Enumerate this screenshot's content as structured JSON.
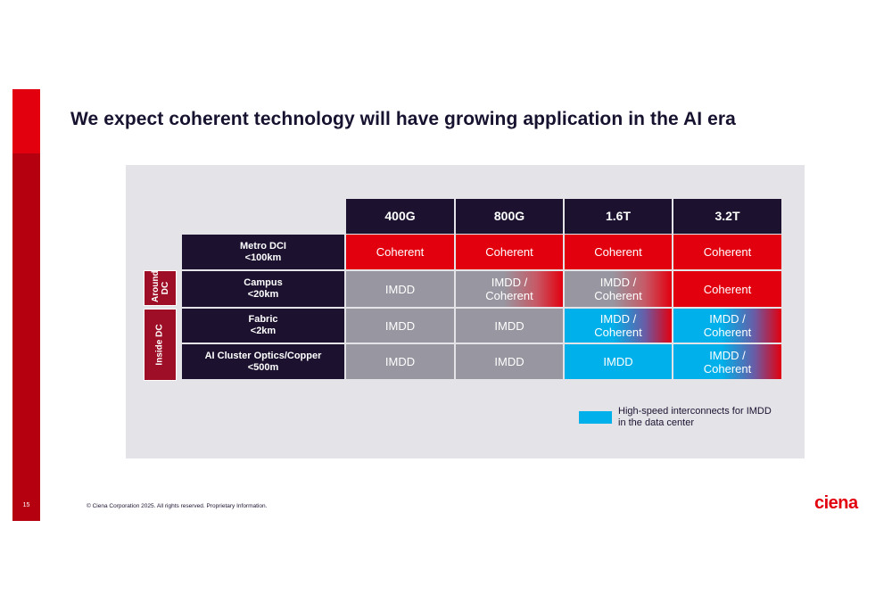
{
  "title": "We expect coherent technology will have growing application in the AI era",
  "page_number": "15",
  "footer": "© Ciena Corporation 2025. All rights reserved. Proprietary Information.",
  "logo_text": "ciena",
  "table": {
    "columns": [
      "400G",
      "800G",
      "1.6T",
      "3.2T"
    ],
    "groups": [
      {
        "label": "Around DC"
      },
      {
        "label": "Inside DC"
      }
    ],
    "rows": [
      {
        "name": "Metro DCI",
        "reach": "<100km",
        "cells": [
          "Coherent",
          "Coherent",
          "Coherent",
          "Coherent"
        ]
      },
      {
        "name": "Campus",
        "reach": "<20km",
        "cells": [
          "IMDD",
          "IMDD / Coherent",
          "IMDD / Coherent",
          "Coherent"
        ]
      },
      {
        "name": "Fabric",
        "reach": "<2km",
        "cells": [
          "IMDD",
          "IMDD",
          "IMDD / Coherent",
          "IMDD / Coherent"
        ]
      },
      {
        "name": "AI Cluster Optics/Copper",
        "reach": "<500m",
        "cells": [
          "IMDD",
          "IMDD",
          "IMDD",
          "IMDD / Coherent"
        ]
      }
    ]
  },
  "legend": {
    "text": "High-speed interconnects for IMDD in the data center",
    "color": "#00b0ea"
  },
  "colors": {
    "coherent": "#e2000f",
    "imdd": "#9896a0",
    "highspeed_imdd": "#00b0ea",
    "header": "#1c1230",
    "group": "#9e0e26"
  }
}
